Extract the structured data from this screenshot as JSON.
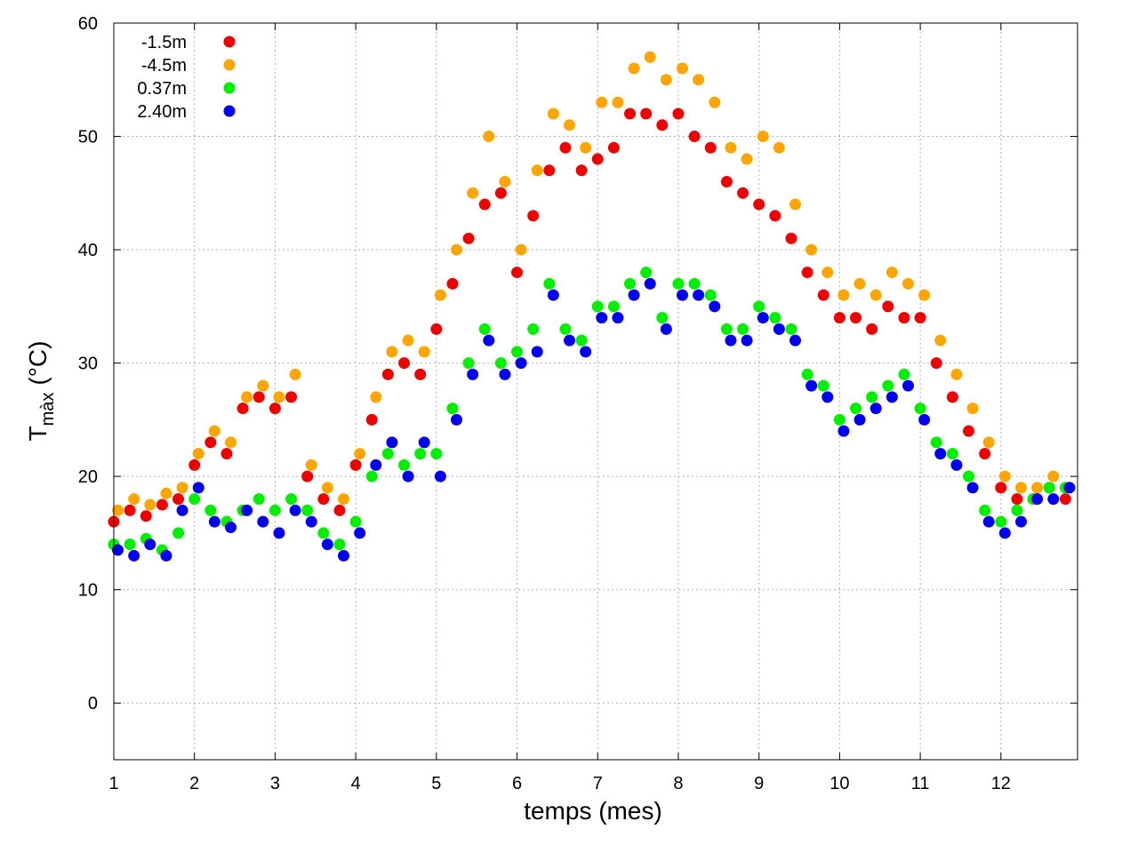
{
  "chart_data": {
    "type": "scatter",
    "title": "",
    "xlabel": "temps (mes)",
    "ylabel_main": "T",
    "ylabel_sub": "màx",
    "ylabel_unit": "(°C)",
    "xlim": [
      1,
      12.95
    ],
    "ylim": [
      -5,
      60
    ],
    "xticks": [
      1,
      2,
      3,
      4,
      5,
      6,
      7,
      8,
      9,
      10,
      11,
      12
    ],
    "yticks": [
      0,
      10,
      20,
      30,
      40,
      50,
      60
    ],
    "grid": true,
    "legend_position": "top-left",
    "series": [
      {
        "name": "-1.5m",
        "color": "#ee0000",
        "x": [
          1.0,
          1.2,
          1.4,
          1.6,
          1.8,
          2.0,
          2.2,
          2.4,
          2.6,
          2.8,
          3.0,
          3.2,
          3.4,
          3.6,
          3.8,
          4.0,
          4.2,
          4.4,
          4.6,
          4.8,
          5.0,
          5.2,
          5.4,
          5.6,
          5.8,
          6.0,
          6.2,
          6.4,
          6.6,
          6.8,
          7.0,
          7.2,
          7.4,
          7.6,
          7.8,
          8.0,
          8.2,
          8.4,
          8.6,
          8.8,
          9.0,
          9.2,
          9.4,
          9.6,
          9.8,
          10.0,
          10.2,
          10.4,
          10.6,
          10.8,
          11.0,
          11.2,
          11.4,
          11.6,
          11.8,
          12.0,
          12.2,
          12.4,
          12.6,
          12.8
        ],
        "y": [
          16,
          17,
          16.5,
          17.5,
          18,
          21,
          23,
          22,
          26,
          27,
          26,
          27,
          20,
          18,
          17,
          21,
          25,
          29,
          30,
          29,
          33,
          37,
          41,
          44,
          45,
          38,
          43,
          47,
          49,
          47,
          48,
          49,
          52,
          52,
          51,
          52,
          50,
          49,
          46,
          45,
          44,
          43,
          41,
          38,
          36,
          34,
          34,
          33,
          35,
          34,
          34,
          30,
          27,
          24,
          22,
          19,
          18,
          18,
          19,
          18
        ]
      },
      {
        "name": "-4.5m",
        "color": "#ffa500",
        "x": [
          1.05,
          1.25,
          1.45,
          1.65,
          1.85,
          2.05,
          2.25,
          2.45,
          2.65,
          2.85,
          3.05,
          3.25,
          3.45,
          3.65,
          3.85,
          4.05,
          4.25,
          4.45,
          4.65,
          4.85,
          5.05,
          5.25,
          5.45,
          5.65,
          5.85,
          6.05,
          6.25,
          6.45,
          6.65,
          6.85,
          7.05,
          7.25,
          7.45,
          7.65,
          7.85,
          8.05,
          8.25,
          8.45,
          8.65,
          8.85,
          9.05,
          9.25,
          9.45,
          9.65,
          9.85,
          10.05,
          10.25,
          10.45,
          10.65,
          10.85,
          11.05,
          11.25,
          11.45,
          11.65,
          11.85,
          12.05,
          12.25,
          12.45,
          12.65,
          12.85
        ],
        "y": [
          17,
          18,
          17.5,
          18.5,
          19,
          22,
          24,
          23,
          27,
          28,
          27,
          29,
          21,
          19,
          18,
          22,
          27,
          31,
          32,
          31,
          36,
          40,
          45,
          50,
          46,
          40,
          47,
          52,
          51,
          49,
          53,
          53,
          56,
          57,
          55,
          56,
          55,
          53,
          49,
          48,
          50,
          49,
          44,
          40,
          38,
          36,
          37,
          36,
          38,
          37,
          36,
          32,
          29,
          26,
          23,
          20,
          19,
          19,
          20,
          19
        ]
      },
      {
        "name": "0.37m",
        "color": "#00ee00",
        "x": [
          1.0,
          1.2,
          1.4,
          1.6,
          1.8,
          2.0,
          2.2,
          2.4,
          2.6,
          2.8,
          3.0,
          3.2,
          3.4,
          3.6,
          3.8,
          4.0,
          4.2,
          4.4,
          4.6,
          4.8,
          5.0,
          5.2,
          5.4,
          5.6,
          5.8,
          6.0,
          6.2,
          6.4,
          6.6,
          6.8,
          7.0,
          7.2,
          7.4,
          7.6,
          7.8,
          8.0,
          8.2,
          8.4,
          8.6,
          8.8,
          9.0,
          9.2,
          9.4,
          9.6,
          9.8,
          10.0,
          10.2,
          10.4,
          10.6,
          10.8,
          11.0,
          11.2,
          11.4,
          11.6,
          11.8,
          12.0,
          12.2,
          12.4,
          12.6,
          12.8
        ],
        "y": [
          14,
          14,
          14.5,
          13.5,
          15,
          18,
          17,
          16,
          17,
          18,
          17,
          18,
          17,
          15,
          14,
          16,
          20,
          22,
          21,
          22,
          22,
          26,
          30,
          33,
          30,
          31,
          33,
          37,
          33,
          32,
          35,
          35,
          37,
          38,
          34,
          37,
          37,
          36,
          33,
          33,
          35,
          34,
          33,
          29,
          28,
          25,
          26,
          27,
          28,
          29,
          26,
          23,
          22,
          20,
          17,
          16,
          17,
          18,
          19,
          19
        ]
      },
      {
        "name": "2.40m",
        "color": "#0000ee",
        "x": [
          1.05,
          1.25,
          1.45,
          1.65,
          1.85,
          2.05,
          2.25,
          2.45,
          2.65,
          2.85,
          3.05,
          3.25,
          3.45,
          3.65,
          3.85,
          4.05,
          4.25,
          4.45,
          4.65,
          4.85,
          5.05,
          5.25,
          5.45,
          5.65,
          5.85,
          6.05,
          6.25,
          6.45,
          6.65,
          6.85,
          7.05,
          7.25,
          7.45,
          7.65,
          7.85,
          8.05,
          8.25,
          8.45,
          8.65,
          8.85,
          9.05,
          9.25,
          9.45,
          9.65,
          9.85,
          10.05,
          10.25,
          10.45,
          10.65,
          10.85,
          11.05,
          11.25,
          11.45,
          11.65,
          11.85,
          12.05,
          12.25,
          12.45,
          12.65,
          12.85
        ],
        "y": [
          13.5,
          13,
          14,
          13,
          17,
          19,
          16,
          15.5,
          17,
          16,
          15,
          17,
          16,
          14,
          13,
          15,
          21,
          23,
          20,
          23,
          20,
          25,
          29,
          32,
          29,
          30,
          31,
          36,
          32,
          31,
          34,
          34,
          36,
          37,
          33,
          36,
          36,
          35,
          32,
          32,
          34,
          33,
          32,
          28,
          27,
          24,
          25,
          26,
          27,
          28,
          25,
          22,
          21,
          19,
          16,
          15,
          16,
          18,
          18,
          19
        ]
      }
    ]
  }
}
